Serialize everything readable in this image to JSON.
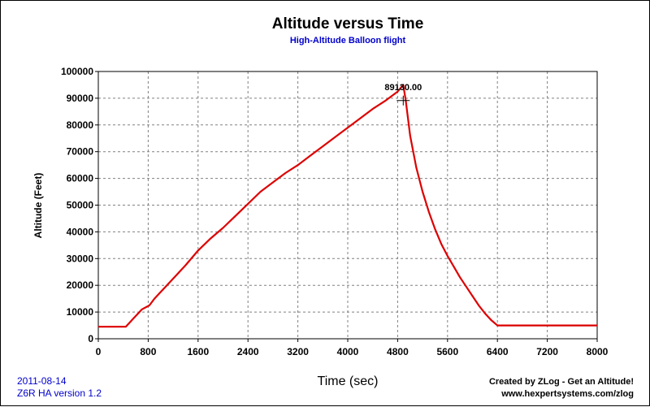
{
  "chart_data": {
    "type": "line",
    "title": "Altitude versus Time",
    "subtitle": "High-Altitude Balloon flight",
    "xlabel": "Time (sec)",
    "ylabel": "Altitude (Feet)",
    "xlim": [
      0,
      8000
    ],
    "ylim": [
      0,
      100000
    ],
    "x_ticks": [
      "0",
      "800",
      "1600",
      "2400",
      "3200",
      "4000",
      "4800",
      "5600",
      "6400",
      "7200",
      "8000"
    ],
    "y_ticks": [
      "0",
      "10000",
      "20000",
      "30000",
      "40000",
      "50000",
      "60000",
      "70000",
      "80000",
      "90000",
      "100000"
    ],
    "grid": true,
    "series_color": "#dd0000",
    "series": [
      {
        "x": [
          0,
          440,
          560,
          700,
          820,
          900,
          1000,
          1200,
          1400,
          1600,
          1800,
          2000,
          2200,
          2400,
          2600,
          2800,
          3000,
          3200,
          3400,
          3600,
          3800,
          4000,
          4200,
          4400,
          4600,
          4800,
          4890,
          4930,
          5000,
          5100,
          5200,
          5300,
          5400,
          5500,
          5600,
          5700,
          5800,
          5900,
          6000,
          6100,
          6200,
          6300,
          6400,
          6480,
          6550,
          7000,
          8000
        ],
        "y": [
          4500,
          4500,
          7500,
          11000,
          12500,
          15000,
          17500,
          22500,
          27500,
          33000,
          37500,
          41500,
          46000,
          50500,
          55000,
          58500,
          62000,
          65000,
          68500,
          72000,
          75500,
          79000,
          82500,
          86000,
          89000,
          92500,
          95000,
          89130,
          76000,
          64000,
          55000,
          47500,
          41000,
          35500,
          31000,
          27000,
          23000,
          19500,
          16000,
          12500,
          9500,
          7000,
          5000,
          5000,
          5000,
          5000,
          5000
        ]
      }
    ],
    "annotation": {
      "text": "89130.00",
      "x": 4890,
      "y": 89130
    }
  },
  "footer": {
    "date": "2011-08-14",
    "version": "Z6R HA version 1.2",
    "credit": "Created by ZLog - Get an Altitude!",
    "url": "www.hexpertsystems.com/zlog"
  }
}
